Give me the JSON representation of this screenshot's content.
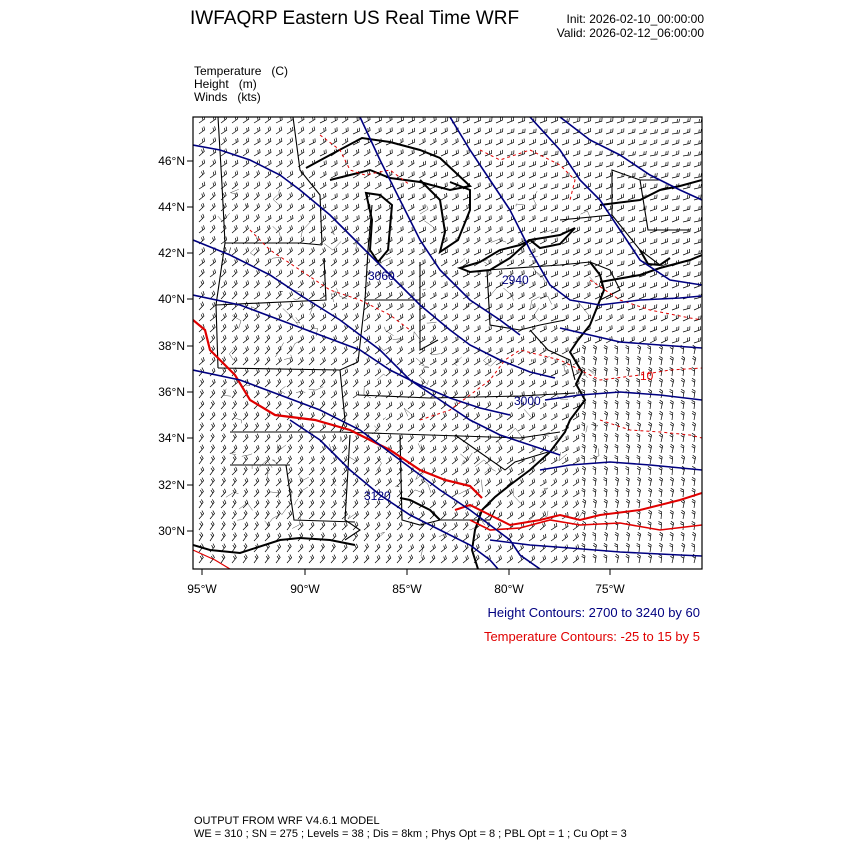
{
  "header": {
    "title": "IWFAQRP Eastern US Real Time WRF",
    "init": "Init: 2026-02-10_00:00:00",
    "valid": "Valid: 2026-02-12_06:00:00"
  },
  "variables": [
    {
      "name": "Temperature",
      "unit": "(C)"
    },
    {
      "name": "Height",
      "unit": "(m)"
    },
    {
      "name": "Winds",
      "unit": "(kts)"
    }
  ],
  "map": {
    "lat_labels": [
      "46°N",
      "44°N",
      "42°N",
      "40°N",
      "38°N",
      "36°N",
      "34°N",
      "32°N",
      "30°N"
    ],
    "lon_labels": [
      "95°W",
      "90°W",
      "85°W",
      "80°W",
      "75°W"
    ],
    "height_contour_labels": [
      "3060",
      "2940",
      "3120",
      "3000"
    ],
    "temperature_contour_labels": [
      "10"
    ],
    "height_color": "#000080",
    "temperature_color": "#e00000",
    "coastline_color": "#000000"
  },
  "legend": {
    "height": "Height Contours: 2700 to 3240 by 60",
    "temperature": "Temperature Contours: -25 to 15 by 5"
  },
  "footer": {
    "line1": "OUTPUT FROM WRF V4.6.1 MODEL",
    "line2": "WE = 310 ; SN = 275 ; Levels = 38 ; Dis = 8km ; Phys Opt = 8 ; PBL Opt = 1 ; Cu Opt = 3"
  }
}
